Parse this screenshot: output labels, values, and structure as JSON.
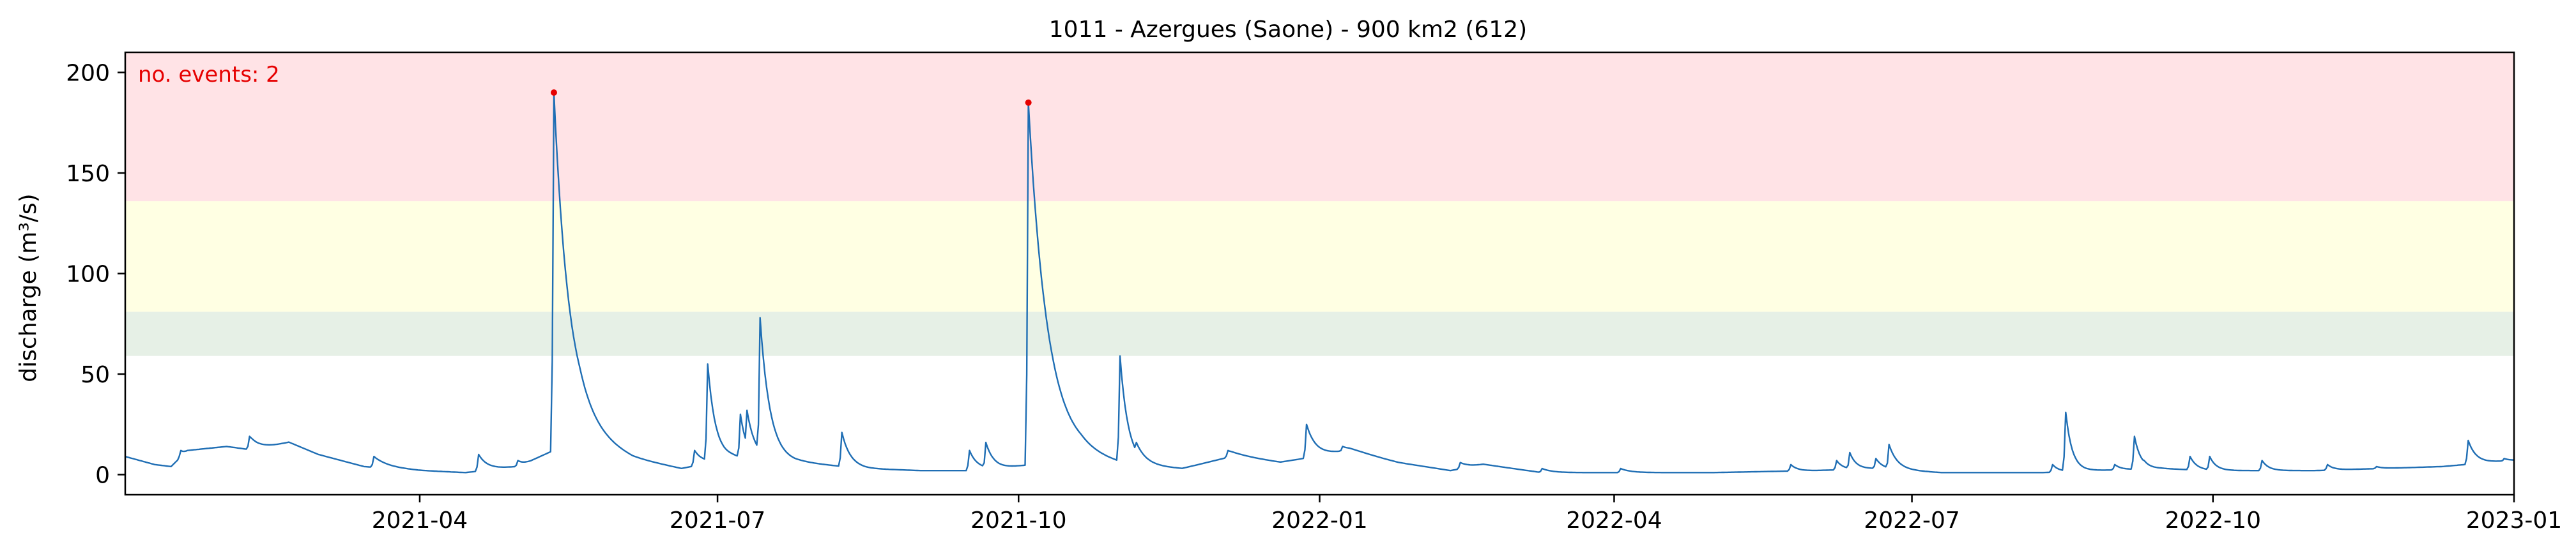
{
  "chart_data": {
    "type": "line",
    "title": "1011 - Azergues (Saone) - 900 km2 (612)",
    "xlabel": "",
    "ylabel": "discharge (m³/s)",
    "xlim": [
      "2021-01-01",
      "2023-01-01"
    ],
    "ylim": [
      -10,
      210
    ],
    "xticks": [
      "2021-04-01",
      "2021-07-01",
      "2021-10-01",
      "2022-01-01",
      "2022-04-01",
      "2022-07-01",
      "2022-10-01",
      "2023-01-01"
    ],
    "xtick_labels": [
      "2021-04",
      "2021-07",
      "2021-10",
      "2022-01",
      "2022-04",
      "2022-07",
      "2022-10",
      "2023-01"
    ],
    "yticks": [
      0,
      50,
      100,
      150,
      200
    ],
    "ytick_labels": [
      "0",
      "50",
      "100",
      "150",
      "200"
    ],
    "grid": false,
    "bands": [
      {
        "from": 59,
        "to": 81,
        "color": "#e6f0e6"
      },
      {
        "from": 81,
        "to": 136,
        "color": "#ffffe3"
      },
      {
        "from": 136,
        "to": 210,
        "color": "#ffe3e6"
      }
    ],
    "annotation": {
      "text": "no. events: 2",
      "color": "#e60000"
    },
    "events": [
      {
        "x": "2021-05-12",
        "y": 190
      },
      {
        "x": "2021-10-04",
        "y": 185
      }
    ],
    "series": [
      {
        "color": "#1f6eb4",
        "baseline": [
          [
            "2021-01-01",
            9
          ],
          [
            "2021-01-10",
            5
          ],
          [
            "2021-01-15",
            4
          ],
          [
            "2021-01-20",
            12
          ],
          [
            "2021-02-01",
            14
          ],
          [
            "2021-02-10",
            12
          ],
          [
            "2021-02-20",
            16
          ],
          [
            "2021-03-01",
            10
          ],
          [
            "2021-03-15",
            4
          ],
          [
            "2021-04-01",
            2
          ],
          [
            "2021-04-15",
            1
          ],
          [
            "2021-05-01",
            4
          ],
          [
            "2021-05-20",
            18
          ],
          [
            "2021-06-05",
            8
          ],
          [
            "2021-06-20",
            3
          ],
          [
            "2021-07-05",
            8
          ],
          [
            "2021-07-25",
            6
          ],
          [
            "2021-08-15",
            3
          ],
          [
            "2021-09-01",
            2
          ],
          [
            "2021-09-15",
            2
          ],
          [
            "2021-09-25",
            3
          ],
          [
            "2021-10-20",
            8
          ],
          [
            "2021-11-01",
            5
          ],
          [
            "2021-11-20",
            3
          ],
          [
            "2021-12-05",
            9
          ],
          [
            "2021-12-20",
            6
          ],
          [
            "2022-01-10",
            12
          ],
          [
            "2022-01-25",
            6
          ],
          [
            "2022-02-10",
            2
          ],
          [
            "2022-02-20",
            5
          ],
          [
            "2022-03-10",
            1
          ],
          [
            "2022-04-01",
            1
          ],
          [
            "2022-05-01",
            1
          ],
          [
            "2022-06-01",
            2
          ],
          [
            "2022-06-20",
            3
          ],
          [
            "2022-07-10",
            1
          ],
          [
            "2022-08-10",
            1
          ],
          [
            "2022-08-25",
            2
          ],
          [
            "2022-09-15",
            3
          ],
          [
            "2022-10-01",
            2
          ],
          [
            "2022-11-01",
            2
          ],
          [
            "2022-12-10",
            4
          ],
          [
            "2022-12-31",
            7
          ]
        ],
        "peaks": [
          [
            "2021-01-18",
            12,
            3
          ],
          [
            "2021-02-08",
            19,
            4
          ],
          [
            "2021-03-18",
            9,
            4
          ],
          [
            "2021-04-19",
            10,
            3
          ],
          [
            "2021-05-01",
            7,
            3
          ],
          [
            "2021-05-12",
            190,
            5
          ],
          [
            "2021-05-20",
            22,
            4
          ],
          [
            "2021-06-03",
            6,
            3
          ],
          [
            "2021-06-24",
            12,
            3
          ],
          [
            "2021-06-28",
            55,
            2.5
          ],
          [
            "2021-07-04",
            12,
            3
          ],
          [
            "2021-07-08",
            30,
            2
          ],
          [
            "2021-07-10",
            32,
            2.5
          ],
          [
            "2021-07-14",
            78,
            3
          ],
          [
            "2021-07-22",
            10,
            4
          ],
          [
            "2021-08-08",
            21,
            2.5
          ],
          [
            "2021-09-16",
            12,
            2.5
          ],
          [
            "2021-09-21",
            16,
            2.5
          ],
          [
            "2021-10-04",
            185,
            6
          ],
          [
            "2021-10-29",
            8,
            3
          ],
          [
            "2021-11-01",
            59,
            2.5
          ],
          [
            "2021-11-06",
            16,
            3
          ],
          [
            "2021-12-04",
            12,
            5
          ],
          [
            "2021-12-28",
            25,
            3
          ],
          [
            "2022-01-08",
            14,
            4
          ],
          [
            "2022-02-13",
            6,
            4
          ],
          [
            "2022-03-10",
            3,
            3
          ],
          [
            "2022-04-03",
            3,
            3
          ],
          [
            "2022-05-25",
            5,
            2
          ],
          [
            "2022-06-08",
            7,
            2
          ],
          [
            "2022-06-12",
            11,
            2
          ],
          [
            "2022-06-20",
            8,
            2
          ],
          [
            "2022-06-24",
            15,
            2.5
          ],
          [
            "2022-08-13",
            5,
            2
          ],
          [
            "2022-08-17",
            31,
            2
          ],
          [
            "2022-09-01",
            5,
            2
          ],
          [
            "2022-09-07",
            19,
            2
          ],
          [
            "2022-09-10",
            7,
            2
          ],
          [
            "2022-09-24",
            9,
            2
          ],
          [
            "2022-09-30",
            9,
            2
          ],
          [
            "2022-10-16",
            7,
            2
          ],
          [
            "2022-11-05",
            5,
            2
          ],
          [
            "2022-11-20",
            4,
            2
          ],
          [
            "2022-12-18",
            17,
            2.5
          ],
          [
            "2022-12-29",
            8,
            2
          ]
        ]
      }
    ]
  }
}
